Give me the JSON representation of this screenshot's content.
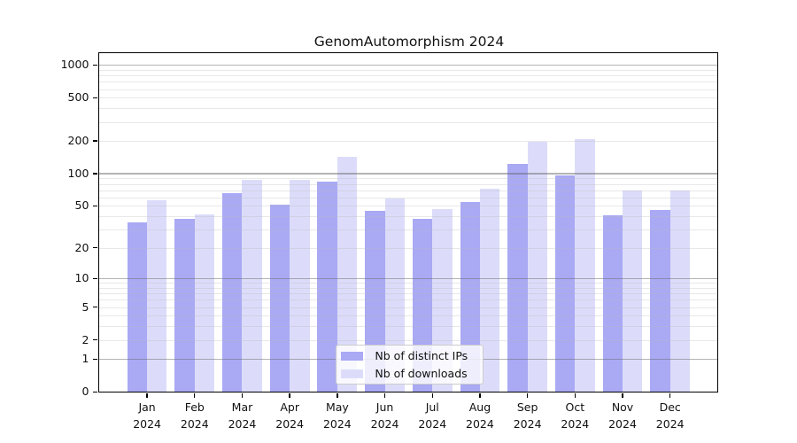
{
  "chart_data": {
    "type": "bar",
    "title": "GenomAutomorphism 2024",
    "categories": [
      "Jan",
      "Feb",
      "Mar",
      "Apr",
      "May",
      "Jun",
      "Jul",
      "Aug",
      "Sep",
      "Oct",
      "Nov",
      "Dec"
    ],
    "year": "2024",
    "series": [
      {
        "name": "Nb of distinct IPs",
        "color": "#a9a9f4",
        "values": [
          35,
          38,
          66,
          51,
          84,
          45,
          38,
          54,
          122,
          96,
          41,
          46
        ]
      },
      {
        "name": "Nb of downloads",
        "color": "#dcdcfa",
        "values": [
          57,
          42,
          87,
          88,
          142,
          59,
          47,
          72,
          195,
          208,
          70,
          70
        ]
      }
    ],
    "xlabel": "",
    "ylabel": "",
    "yscale": "log1p",
    "yticks": [
      0,
      1,
      2,
      5,
      10,
      20,
      50,
      100,
      200,
      500,
      1000
    ],
    "ylim": [
      0,
      1276
    ],
    "grid": true,
    "legend_position": "lower-center"
  }
}
